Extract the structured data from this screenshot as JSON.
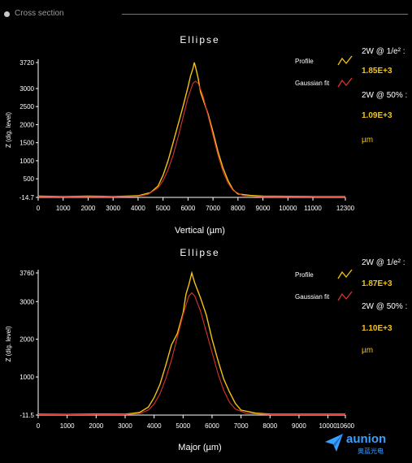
{
  "header": {
    "title": "Cross section"
  },
  "plots": [
    {
      "title": "Ellipse",
      "ylabel": "Z (dig. level)",
      "xlabel": "Vertical (µm)",
      "legend": {
        "profile": "Profile",
        "gaussian": "Gaussian fit"
      },
      "stats": {
        "w1_label": "2W @ 1/e² :",
        "w1_value": "1.85E+3",
        "w2_label": "2W @ 50% :",
        "w2_value": "1.09E+3",
        "unit": "µm"
      }
    },
    {
      "title": "Ellipse",
      "ylabel": "Z (dig. level)",
      "xlabel": "Major (µm)",
      "legend": {
        "profile": "Profile",
        "gaussian": "Gaussian fit"
      },
      "stats": {
        "w1_label": "2W @ 1/e² :",
        "w1_value": "1.87E+3",
        "w2_label": "2W @ 50% :",
        "w2_value": "1.10E+3",
        "unit": "µm"
      }
    }
  ],
  "chart_data": [
    {
      "type": "line",
      "title": "Ellipse",
      "xlabel": "Vertical (µm)",
      "ylabel": "Z (dig. level)",
      "xlim": [
        0,
        12300
      ],
      "ylim": [
        -14.7,
        3720
      ],
      "x_ticks": [
        "0",
        "1000",
        "2000",
        "3000",
        "4000",
        "5000",
        "6000",
        "7000",
        "8000",
        "9000",
        "10000",
        "11000",
        "12300"
      ],
      "x_tick_values": [
        0,
        1000,
        2000,
        3000,
        4000,
        5000,
        6000,
        7000,
        8000,
        9000,
        10000,
        11000,
        12300
      ],
      "y_ticks": [
        "-14.7",
        "500",
        "1000",
        "1500",
        "2000",
        "2500",
        "3000",
        "3720"
      ],
      "y_tick_values": [
        -14.7,
        500,
        1000,
        1500,
        2000,
        2500,
        3000,
        3720
      ],
      "series": [
        {
          "name": "Profile",
          "color": "#f2c511",
          "x": [
            0,
            1000,
            2000,
            3000,
            4000,
            4500,
            4800,
            5000,
            5200,
            5400,
            5600,
            5800,
            6000,
            6100,
            6200,
            6250,
            6300,
            6400,
            6500,
            6600,
            6800,
            7000,
            7200,
            7400,
            7600,
            7800,
            8000,
            8500,
            9000,
            10000,
            11000,
            12300
          ],
          "y": [
            20,
            10,
            20,
            10,
            30,
            120,
            300,
            600,
            1000,
            1500,
            2000,
            2500,
            3050,
            3350,
            3560,
            3720,
            3600,
            3300,
            2900,
            2700,
            2300,
            1800,
            1250,
            800,
            450,
            200,
            80,
            40,
            20,
            15,
            10,
            10
          ]
        },
        {
          "name": "Gaussian fit",
          "color": "#d9342b",
          "x": [
            0,
            3000,
            4000,
            4400,
            4800,
            5000,
            5200,
            5400,
            5600,
            5800,
            6000,
            6200,
            6300,
            6400,
            6600,
            6800,
            7000,
            7200,
            7400,
            7600,
            7800,
            8200,
            9000,
            12300
          ],
          "y": [
            0,
            0,
            15,
            70,
            250,
            450,
            750,
            1150,
            1650,
            2200,
            2750,
            3150,
            3200,
            3150,
            2800,
            2250,
            1700,
            1150,
            700,
            380,
            180,
            30,
            0,
            0
          ]
        }
      ]
    },
    {
      "type": "line",
      "title": "Ellipse",
      "xlabel": "Major (µm)",
      "ylabel": "Z (dig. level)",
      "xlim": [
        0,
        10600
      ],
      "ylim": [
        -11.5,
        3760
      ],
      "x_ticks": [
        "0",
        "1000",
        "2000",
        "3000",
        "4000",
        "5000",
        "6000",
        "7000",
        "8000",
        "9000",
        "10000",
        "10600"
      ],
      "x_tick_values": [
        0,
        1000,
        2000,
        3000,
        4000,
        5000,
        6000,
        7000,
        8000,
        9000,
        10000,
        10600
      ],
      "y_ticks": [
        "-11.5",
        "1000",
        "2000",
        "3000",
        "3760"
      ],
      "y_tick_values": [
        -11.5,
        1000,
        2000,
        3000,
        3760
      ],
      "series": [
        {
          "name": "Profile",
          "color": "#f2c511",
          "x": [
            0,
            1000,
            2000,
            3000,
            3500,
            3800,
            4000,
            4200,
            4400,
            4600,
            4800,
            5000,
            5100,
            5200,
            5300,
            5400,
            5500,
            5600,
            5800,
            6000,
            6200,
            6400,
            6600,
            6800,
            7000,
            7500,
            8000,
            9000,
            10600
          ],
          "y": [
            10,
            5,
            15,
            10,
            60,
            200,
            450,
            800,
            1300,
            1850,
            2150,
            2700,
            3200,
            3450,
            3760,
            3500,
            3300,
            3100,
            2650,
            2000,
            1450,
            950,
            600,
            300,
            120,
            40,
            15,
            10,
            10
          ]
        },
        {
          "name": "Gaussian fit",
          "color": "#d9342b",
          "x": [
            0,
            3000,
            3500,
            3800,
            4000,
            4200,
            4400,
            4600,
            4800,
            5000,
            5200,
            5300,
            5400,
            5600,
            5800,
            6000,
            6200,
            6400,
            6600,
            6800,
            7200,
            8000,
            10600
          ],
          "y": [
            0,
            0,
            30,
            120,
            280,
            550,
            950,
            1450,
            2050,
            2650,
            3150,
            3230,
            3150,
            2750,
            2200,
            1650,
            1100,
            650,
            330,
            150,
            30,
            0,
            0
          ]
        }
      ]
    }
  ],
  "logo": {
    "brand": "aunion",
    "sub": "奥蓝光电",
    "accent": "#3aa0ff"
  }
}
